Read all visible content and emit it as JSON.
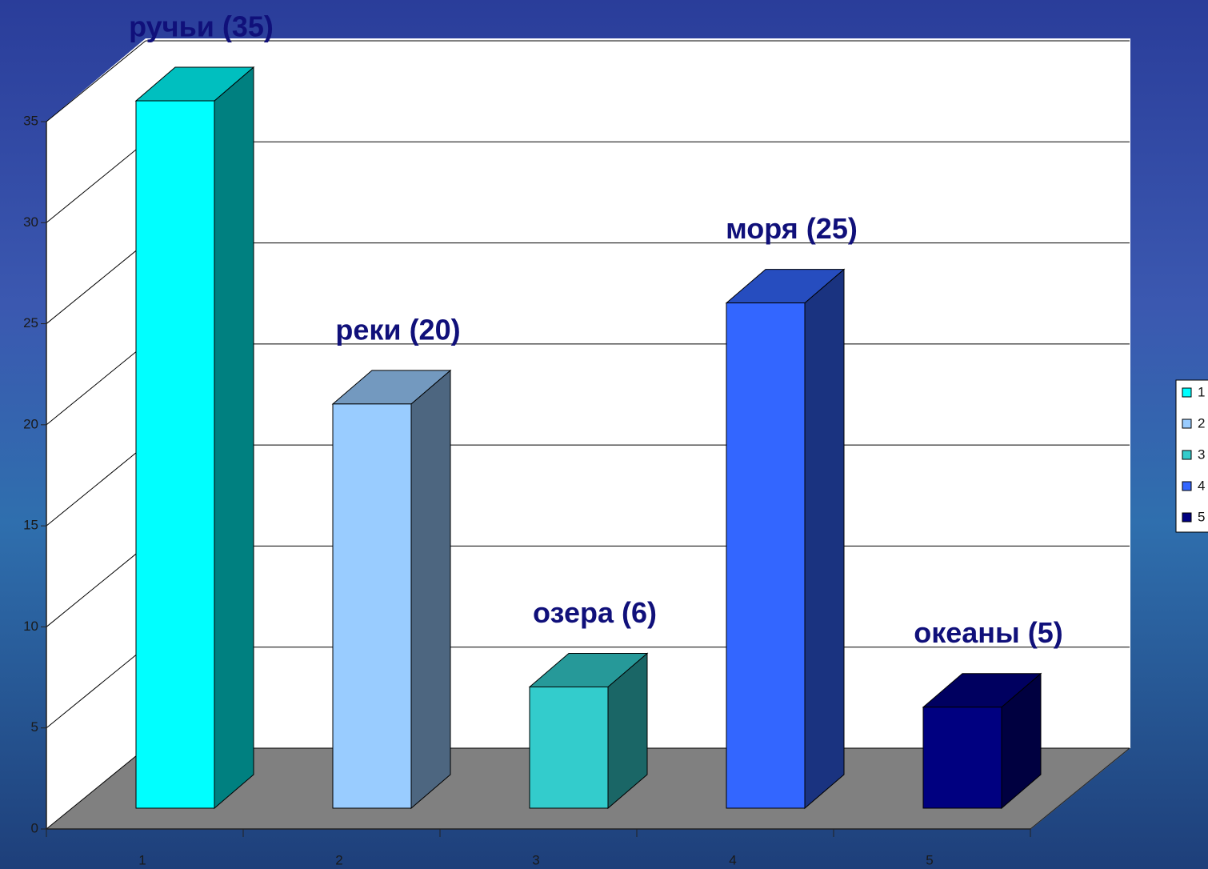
{
  "chart_data": {
    "type": "bar3d",
    "categories": [
      "1",
      "2",
      "3",
      "4",
      "5"
    ],
    "values": [
      35,
      20,
      6,
      25,
      5
    ],
    "colors": [
      "#00ffff",
      "#99ccff",
      "#33cccc",
      "#3366ff",
      "#000080"
    ],
    "annotations": [
      "ручьи (35)",
      "реки (20)",
      "озера (6)",
      "моря (25)",
      "океаны (5)"
    ],
    "ylim": [
      0,
      35
    ],
    "yticks": [
      0,
      5,
      10,
      15,
      20,
      25,
      30,
      35
    ],
    "grid": true,
    "legend": "right"
  }
}
